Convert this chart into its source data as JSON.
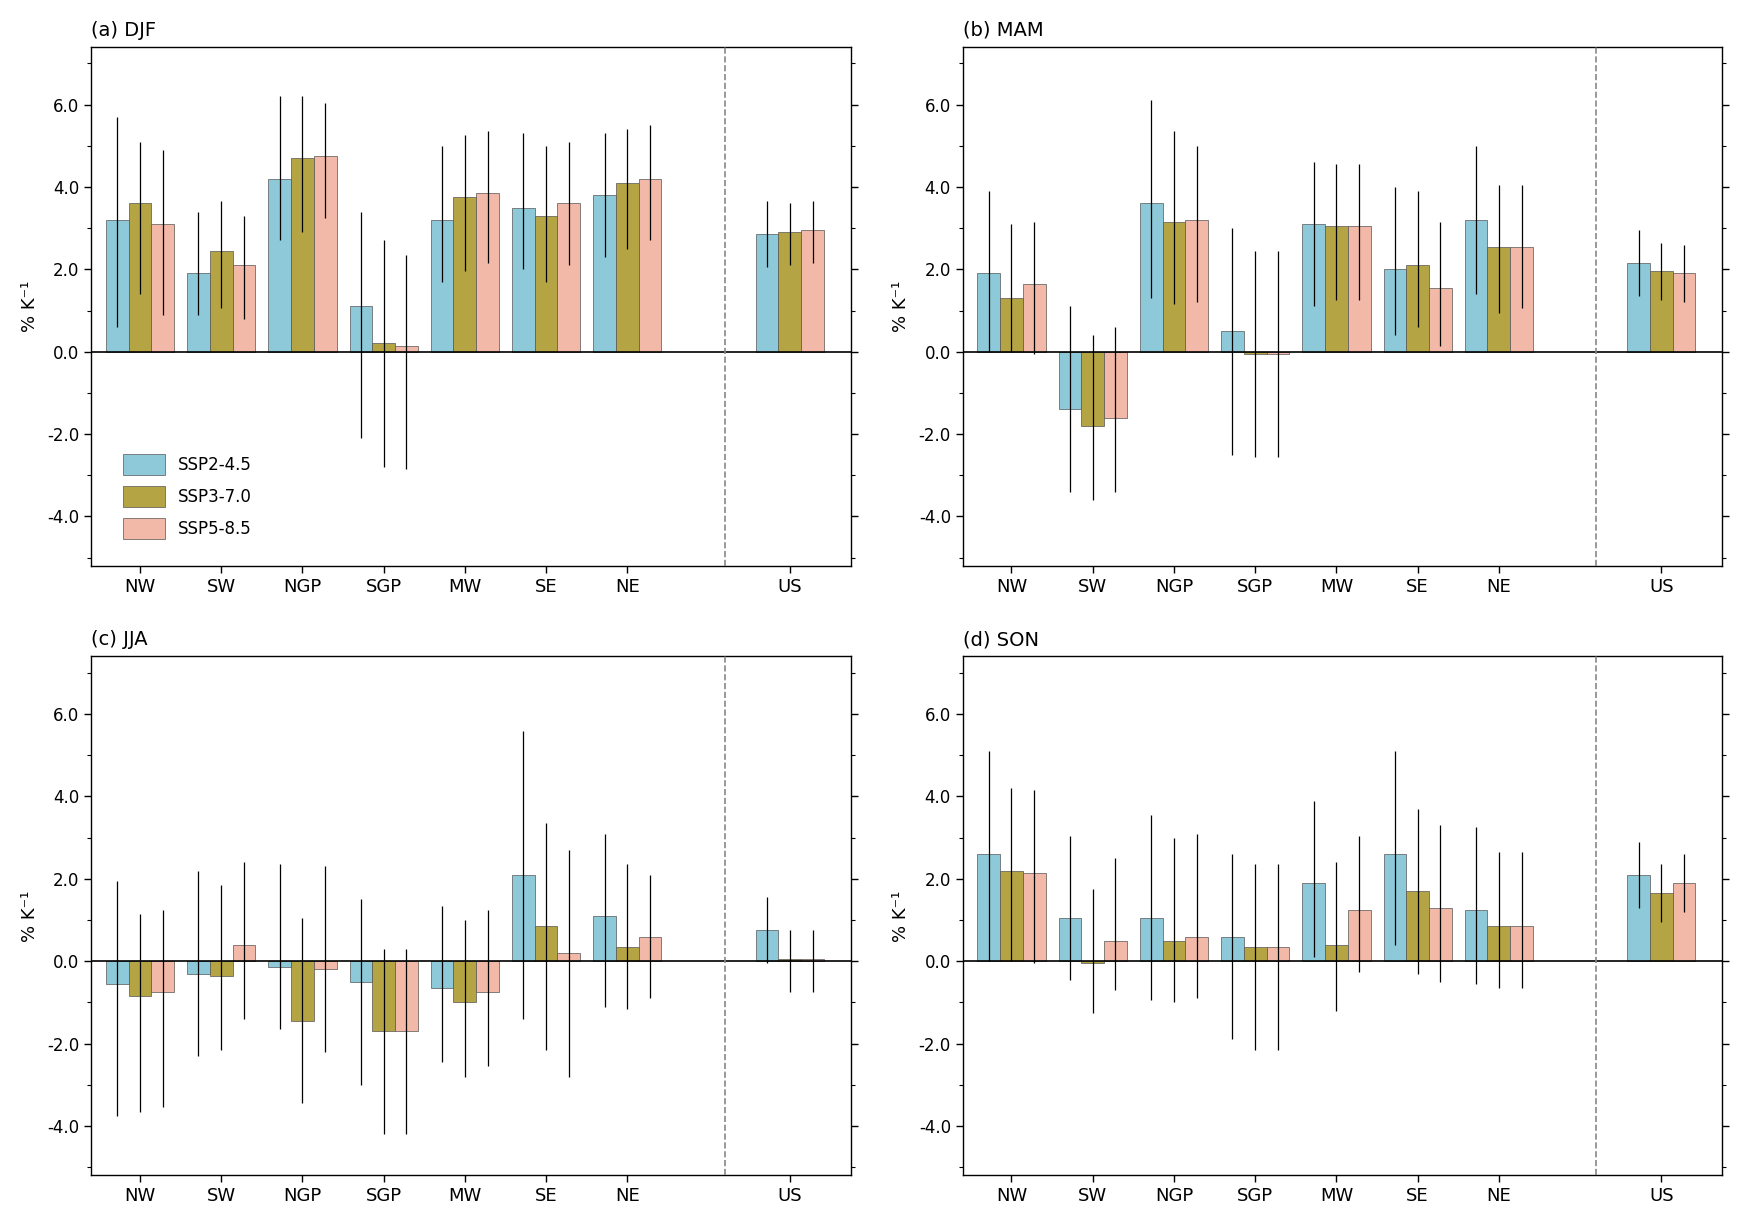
{
  "seasons": [
    "DJF",
    "MAM",
    "JJA",
    "SON"
  ],
  "season_labels": [
    "(a) DJF",
    "(b) MAM",
    "(c) JJA",
    "(d) SON"
  ],
  "regions": [
    "NW",
    "SW",
    "NGP",
    "SGP",
    "MW",
    "SE",
    "NE",
    "US"
  ],
  "colors": {
    "SSP2-4.5": "#8dc9d8",
    "SSP3-7.0": "#b5a444",
    "SSP5-8.5": "#f2b8a8"
  },
  "edge_color": "#555555",
  "bar_values": {
    "DJF": {
      "SSP2-4.5": [
        3.2,
        1.9,
        4.2,
        1.1,
        3.2,
        3.5,
        3.8,
        2.85
      ],
      "SSP3-7.0": [
        3.6,
        2.45,
        4.7,
        0.2,
        3.75,
        3.3,
        4.1,
        2.9
      ],
      "SSP5-8.5": [
        3.1,
        2.1,
        4.75,
        0.15,
        3.85,
        3.6,
        4.2,
        2.95
      ]
    },
    "MAM": {
      "SSP2-4.5": [
        1.9,
        -1.4,
        3.6,
        0.5,
        3.1,
        2.0,
        3.2,
        2.15
      ],
      "SSP3-7.0": [
        1.3,
        -1.8,
        3.15,
        -0.05,
        3.05,
        2.1,
        2.55,
        1.95
      ],
      "SSP5-8.5": [
        1.65,
        -1.6,
        3.2,
        -0.05,
        3.05,
        1.55,
        2.55,
        1.9
      ]
    },
    "JJA": {
      "SSP2-4.5": [
        -0.55,
        -0.3,
        -0.15,
        -0.5,
        -0.65,
        2.1,
        1.1,
        0.75
      ],
      "SSP3-7.0": [
        -0.85,
        -0.35,
        -1.45,
        -1.7,
        -1.0,
        0.85,
        0.35,
        0.05
      ],
      "SSP5-8.5": [
        -0.75,
        0.4,
        -0.2,
        -1.7,
        -0.75,
        0.2,
        0.6,
        0.05
      ]
    },
    "SON": {
      "SSP2-4.5": [
        2.6,
        1.05,
        1.05,
        0.6,
        1.9,
        2.6,
        1.25,
        2.1
      ],
      "SSP3-7.0": [
        2.2,
        -0.05,
        0.5,
        0.35,
        0.4,
        1.7,
        0.85,
        1.65
      ],
      "SSP5-8.5": [
        2.15,
        0.5,
        0.6,
        0.35,
        1.25,
        1.3,
        0.85,
        1.9
      ]
    }
  },
  "error_lo": {
    "DJF": {
      "SSP2-4.5": [
        2.6,
        1.0,
        1.5,
        3.2,
        1.5,
        1.5,
        1.5,
        0.8
      ],
      "SSP3-7.0": [
        2.2,
        1.4,
        1.8,
        3.0,
        1.8,
        1.6,
        1.6,
        0.8
      ],
      "SSP5-8.5": [
        2.2,
        1.3,
        1.5,
        3.0,
        1.7,
        1.5,
        1.5,
        0.8
      ]
    },
    "MAM": {
      "SSP2-4.5": [
        1.9,
        2.0,
        2.3,
        3.0,
        2.0,
        1.6,
        1.8,
        0.8
      ],
      "SSP3-7.0": [
        1.3,
        1.8,
        2.0,
        2.5,
        1.8,
        1.5,
        1.6,
        0.7
      ],
      "SSP5-8.5": [
        1.7,
        1.8,
        2.0,
        2.5,
        1.8,
        1.4,
        1.5,
        0.7
      ]
    },
    "JJA": {
      "SSP2-4.5": [
        3.2,
        2.0,
        1.5,
        2.5,
        1.8,
        3.5,
        2.2,
        0.8
      ],
      "SSP3-7.0": [
        2.8,
        1.8,
        2.0,
        2.5,
        1.8,
        3.0,
        1.5,
        0.8
      ],
      "SSP5-8.5": [
        2.8,
        1.8,
        2.0,
        2.5,
        1.8,
        3.0,
        1.5,
        0.8
      ]
    },
    "SON": {
      "SSP2-4.5": [
        2.6,
        1.5,
        2.0,
        2.5,
        1.8,
        2.2,
        1.8,
        0.8
      ],
      "SSP3-7.0": [
        2.2,
        1.2,
        1.5,
        2.5,
        1.6,
        2.0,
        1.5,
        0.7
      ],
      "SSP5-8.5": [
        2.2,
        1.2,
        1.5,
        2.5,
        1.5,
        1.8,
        1.5,
        0.7
      ]
    }
  },
  "error_hi": {
    "DJF": {
      "SSP2-4.5": [
        2.5,
        1.5,
        2.0,
        2.3,
        1.8,
        1.8,
        1.5,
        0.8
      ],
      "SSP3-7.0": [
        1.5,
        1.2,
        1.5,
        2.5,
        1.5,
        1.7,
        1.3,
        0.7
      ],
      "SSP5-8.5": [
        1.8,
        1.2,
        1.3,
        2.2,
        1.5,
        1.5,
        1.3,
        0.7
      ]
    },
    "MAM": {
      "SSP2-4.5": [
        2.0,
        2.5,
        2.5,
        2.5,
        1.5,
        2.0,
        1.8,
        0.8
      ],
      "SSP3-7.0": [
        1.8,
        2.2,
        2.2,
        2.5,
        1.5,
        1.8,
        1.5,
        0.7
      ],
      "SSP5-8.5": [
        1.5,
        2.2,
        1.8,
        2.5,
        1.5,
        1.6,
        1.5,
        0.7
      ]
    },
    "JJA": {
      "SSP2-4.5": [
        2.5,
        2.5,
        2.5,
        2.0,
        2.0,
        3.5,
        2.0,
        0.8
      ],
      "SSP3-7.0": [
        2.0,
        2.2,
        2.5,
        2.0,
        2.0,
        2.5,
        2.0,
        0.7
      ],
      "SSP5-8.5": [
        2.0,
        2.0,
        2.5,
        2.0,
        2.0,
        2.5,
        1.5,
        0.7
      ]
    },
    "SON": {
      "SSP2-4.5": [
        2.5,
        2.0,
        2.5,
        2.0,
        2.0,
        2.5,
        2.0,
        0.8
      ],
      "SSP3-7.0": [
        2.0,
        1.8,
        2.5,
        2.0,
        2.0,
        2.0,
        1.8,
        0.7
      ],
      "SSP5-8.5": [
        2.0,
        2.0,
        2.5,
        2.0,
        1.8,
        2.0,
        1.8,
        0.7
      ]
    }
  },
  "ylim": [
    -5.2,
    7.4
  ],
  "yticks": [
    -4.0,
    -2.0,
    0.0,
    2.0,
    4.0,
    6.0
  ],
  "ylabel": "% K⁻¹",
  "bar_width": 0.28,
  "legend_labels": [
    "SSP2-4.5",
    "SSP3-7.0",
    "SSP5-8.5"
  ]
}
